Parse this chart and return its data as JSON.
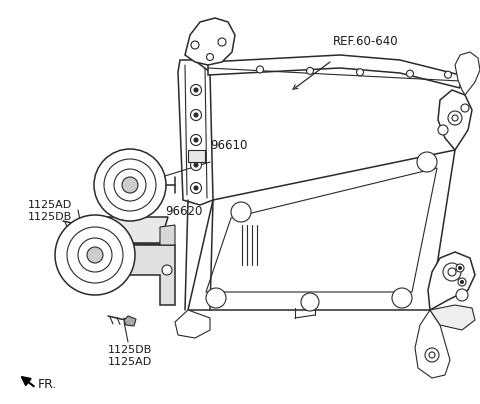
{
  "background_color": "#ffffff",
  "line_color": "#2a2a2a",
  "text_color": "#1a1a1a",
  "figsize": [
    4.8,
    4.04
  ],
  "dpi": 100,
  "labels": {
    "ref": "REF.60-640",
    "part_96610": "96610",
    "part_96620": "96620",
    "label_upper": "1125AD\n1125DB",
    "label_lower": "1125DB\n1125AD",
    "fr_text": "FR."
  }
}
